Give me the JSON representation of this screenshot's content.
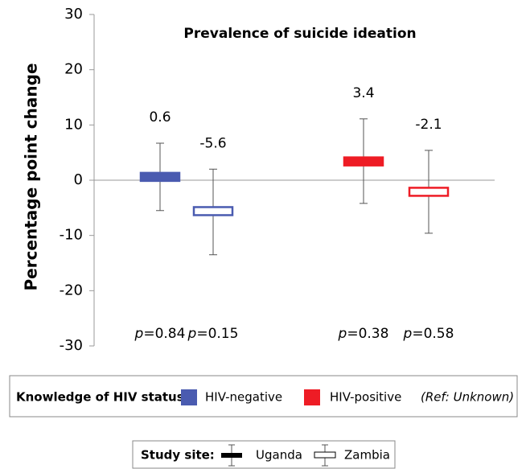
{
  "chart_data": {
    "type": "errorbox",
    "title": "Prevalence of suicide ideation",
    "y_label": "Percentage point change",
    "ylim": [
      -30,
      30
    ],
    "yticks": [
      -30,
      -20,
      -10,
      0,
      10,
      20,
      30
    ],
    "sites": [
      "Uganda",
      "Zambia"
    ],
    "legend_title": "Knowledge of HIV status:",
    "legend_note": "(Ref: Unknown)",
    "site_legend_title": "Study site:",
    "series": [
      {
        "name": "HIV-negative",
        "color": "#4a5bb0",
        "values": [
          0.6,
          -5.6
        ],
        "lower": [
          -5.5,
          -13.5
        ],
        "upper": [
          6.7,
          2.0
        ],
        "p_values": [
          "p=0.84",
          "p=0.15"
        ]
      },
      {
        "name": "HIV-positive",
        "color": "#ee1c25",
        "values": [
          3.4,
          -2.1
        ],
        "lower": [
          -4.2,
          -9.6
        ],
        "upper": [
          11.1,
          5.4
        ],
        "p_values": [
          "p=0.38",
          "p=0.58"
        ]
      }
    ]
  }
}
